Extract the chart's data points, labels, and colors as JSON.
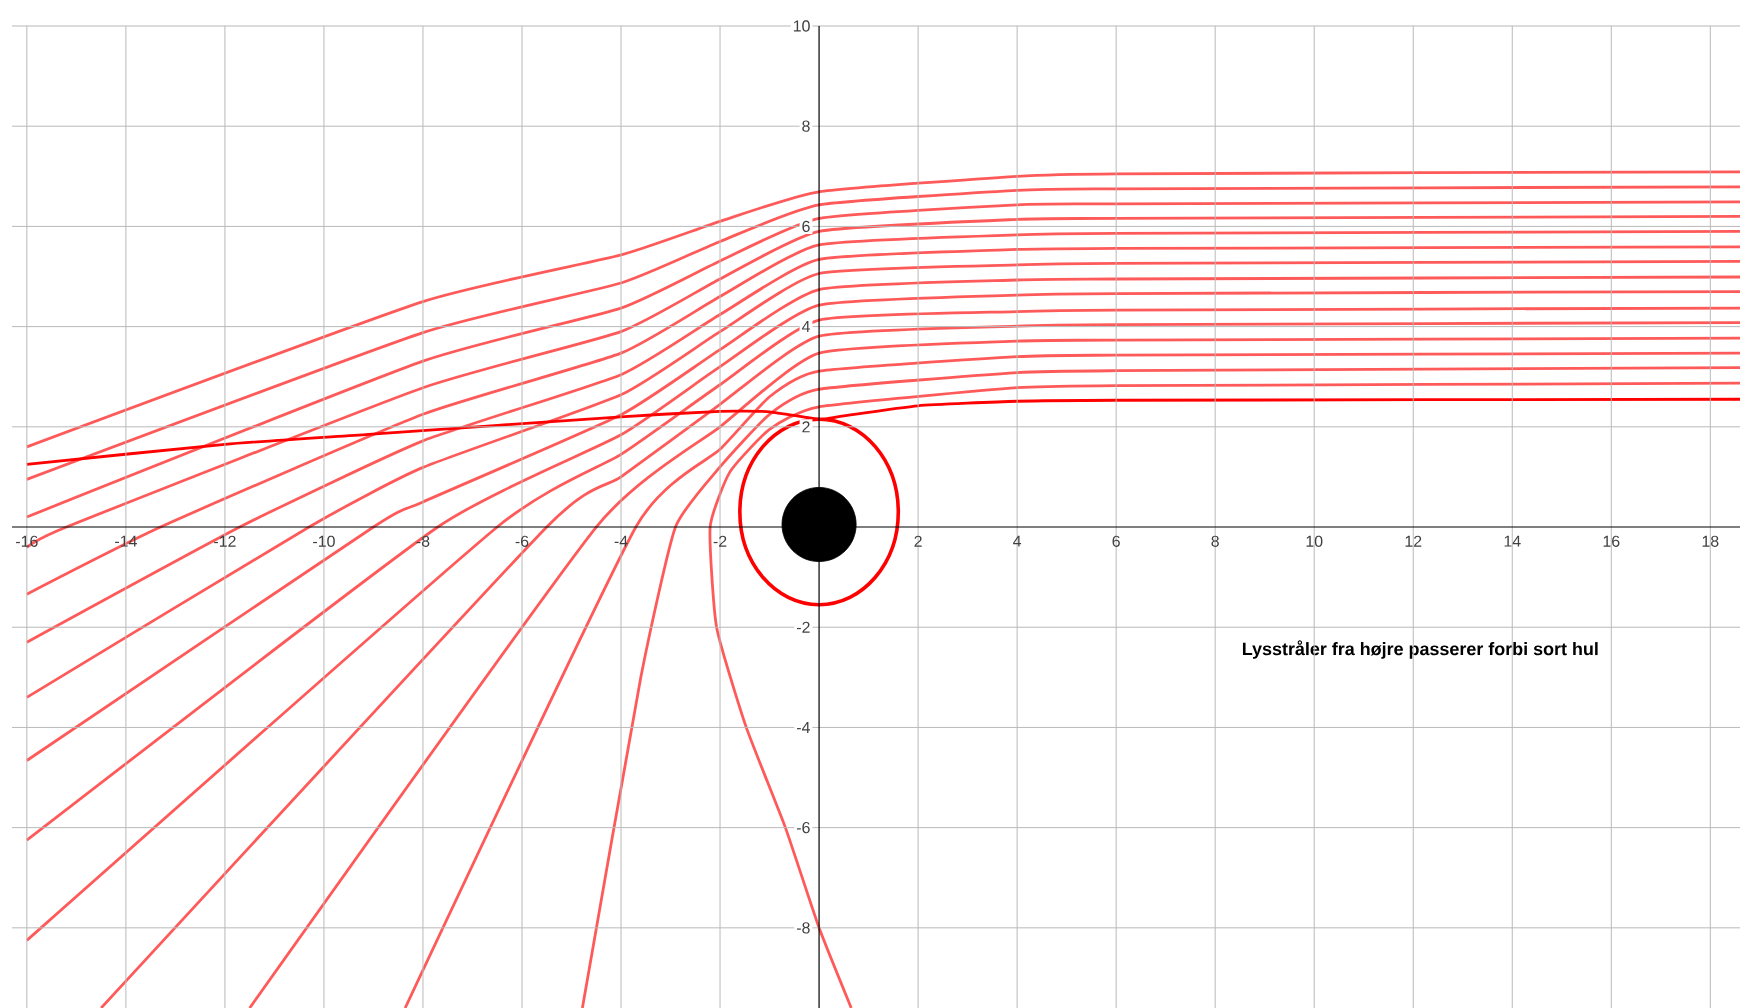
{
  "chart_data": {
    "type": "line",
    "xlim": [
      -16.3,
      18.6
    ],
    "ylim": [
      -9.6,
      10
    ],
    "xticks": [
      -16,
      -14,
      -12,
      -10,
      -8,
      -6,
      -4,
      -2,
      2,
      4,
      6,
      8,
      10,
      12,
      14,
      16,
      18
    ],
    "yticks": [
      -8,
      -6,
      -4,
      -2,
      2,
      4,
      6,
      8,
      10
    ],
    "grid": true,
    "marker": "none",
    "annotations": [
      "Lysstråler fra højre passerer forbi sort hul"
    ],
    "series": [
      {
        "color": "#ff5a5a",
        "x": [
          18.6,
          6,
          4,
          0,
          -2,
          -4,
          -8,
          -16
        ],
        "values": [
          7.09,
          7.05,
          7.0,
          6.69,
          6.1,
          5.43,
          4.5,
          1.6
        ]
      },
      {
        "color": "#ff5a5a",
        "x": [
          18.6,
          6,
          4,
          0,
          -2,
          -4,
          -8,
          -16
        ],
        "values": [
          6.79,
          6.75,
          6.72,
          6.43,
          5.7,
          4.87,
          3.88,
          0.95
        ]
      },
      {
        "color": "#ff5a5a",
        "x": [
          18.6,
          6,
          4,
          0,
          -2,
          -4,
          -8,
          -16
        ],
        "values": [
          6.49,
          6.45,
          6.43,
          6.16,
          5.31,
          4.37,
          3.31,
          0.2
        ]
      },
      {
        "color": "#ff5a5a",
        "x": [
          18.6,
          6,
          4,
          0,
          -2,
          -4,
          -8,
          -15.2,
          -16
        ],
        "values": [
          6.2,
          6.16,
          6.14,
          5.9,
          4.95,
          3.9,
          2.78,
          0,
          -0.41
        ]
      },
      {
        "color": "#ff5a5a",
        "x": [
          18.6,
          6,
          4,
          0,
          -2,
          -4,
          -8,
          -13.3,
          -16
        ],
        "values": [
          5.9,
          5.86,
          5.83,
          5.63,
          4.6,
          3.47,
          2.25,
          0,
          -1.34
        ]
      },
      {
        "color": "#ff5a5a",
        "x": [
          18.6,
          6,
          4,
          0,
          -2,
          -4,
          -8,
          -11.7,
          -16
        ],
        "values": [
          5.59,
          5.56,
          5.54,
          5.34,
          4.24,
          3.04,
          1.72,
          0,
          -2.3
        ]
      },
      {
        "color": "#ff5a5a",
        "x": [
          18.6,
          6,
          4,
          0,
          -2,
          -4,
          -8,
          -10.3,
          -16
        ],
        "values": [
          5.3,
          5.26,
          5.23,
          5.06,
          3.9,
          2.64,
          1.19,
          0,
          -3.4
        ]
      },
      {
        "color": "#ff5a5a",
        "x": [
          18.6,
          6,
          4,
          0,
          -2,
          -4,
          -8,
          -9.0,
          -16
        ],
        "values": [
          4.99,
          4.95,
          4.93,
          4.74,
          3.54,
          2.24,
          0.5,
          0,
          -4.66
        ]
      },
      {
        "color": "#ff5a5a",
        "x": [
          18.6,
          6,
          4,
          0,
          -2,
          -4,
          -7.7,
          -16
        ],
        "values": [
          4.7,
          4.66,
          4.63,
          4.43,
          3.2,
          1.84,
          0,
          -6.25
        ]
      },
      {
        "color": "#ff5a5a",
        "x": [
          18.6,
          6,
          4,
          0,
          -2,
          -4,
          -6.5,
          -16
        ],
        "values": [
          4.37,
          4.33,
          4.3,
          4.13,
          2.84,
          1.45,
          0,
          -8.25
        ]
      },
      {
        "color": "#ff5a5a",
        "x": [
          18.6,
          6,
          4,
          0,
          -2,
          -4,
          -5.5,
          -14.5
        ],
        "values": [
          4.08,
          4.04,
          4.01,
          3.81,
          2.45,
          1.0,
          0,
          -9.6
        ]
      },
      {
        "color": "#ff5a5a",
        "x": [
          18.6,
          6,
          4,
          0,
          -2,
          -4.5,
          -11.5
        ],
        "values": [
          3.77,
          3.73,
          3.71,
          3.47,
          2.0,
          0,
          -9.6
        ]
      },
      {
        "color": "#ff5a5a",
        "x": [
          18.6,
          6,
          4,
          0,
          -1,
          -2,
          -3.7,
          -8.36
        ],
        "values": [
          3.47,
          3.43,
          3.4,
          3.11,
          2.6,
          1.55,
          0,
          -9.6
        ]
      },
      {
        "color": "#ff5a5a",
        "x": [
          18.6,
          6,
          4,
          0,
          -1,
          -2,
          -2.9,
          -3.6,
          -4.78
        ],
        "values": [
          3.18,
          3.12,
          3.08,
          2.75,
          2.25,
          1.2,
          0,
          -3,
          -9.6
        ]
      },
      {
        "color": "#ff5a5a",
        "x": [
          18.6,
          6,
          4,
          0,
          -1,
          -1.8,
          -2.2,
          -2.07,
          -1.47,
          -0.68,
          0,
          0.65
        ],
        "values": [
          2.87,
          2.82,
          2.78,
          2.4,
          1.95,
          1.1,
          0,
          -2,
          -4,
          -6,
          -8,
          -9.6
        ]
      },
      {
        "color": "#ff0000",
        "x": [
          18.6,
          6,
          4,
          2,
          0.5,
          0,
          -1,
          -2,
          -4,
          -9.1,
          -12,
          -16
        ],
        "values": [
          2.55,
          2.53,
          2.51,
          2.42,
          2.22,
          2.15,
          2.3,
          2.31,
          2.2,
          1.85,
          1.65,
          1.25
        ]
      },
      {
        "type": "scatter",
        "marker": "circle",
        "color": "#000000",
        "x": [
          0
        ],
        "values": [
          0.05
        ]
      }
    ]
  }
}
